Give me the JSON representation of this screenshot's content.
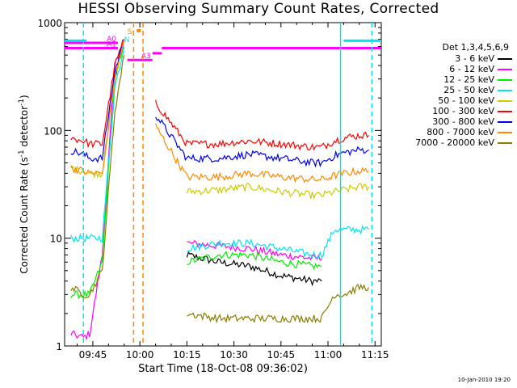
{
  "chart_data": {
    "type": "line",
    "title": "HESSI Observing Summary Count Rates, Corrected",
    "xlabel": "Start Time (18-Oct-08 09:36:02)",
    "ylabel": "Corrected Count Rate (s-1 detector-1)",
    "ylabel_parts": {
      "pre": "Corrected Count Rate (s",
      "sup1": "-1",
      "mid": " detector",
      "sup2": "-1",
      "post": ")"
    },
    "xlim": [
      "09:36",
      "11:17"
    ],
    "ylim": [
      1,
      1000
    ],
    "yscale": "log",
    "grid": false,
    "x_ticks": [
      "09:45",
      "10:00",
      "10:15",
      "10:30",
      "10:45",
      "11:00",
      "11:15"
    ],
    "y_ticks": [
      "1",
      "10",
      "100",
      "1000"
    ],
    "legend": {
      "title": "Det 1,3,4,5,6,9",
      "placement": "right",
      "entries": [
        {
          "label": "3 - 6 keV",
          "color": "#000000"
        },
        {
          "label": "6 - 12 keV",
          "color": "#ff00ff"
        },
        {
          "label": "12 - 25 keV",
          "color": "#00ee00"
        },
        {
          "label": "25 - 50 keV",
          "color": "#00e5ee"
        },
        {
          "label": "50 - 100 keV",
          "color": "#cccc00"
        },
        {
          "label": "100 - 300 keV",
          "color": "#ff0000"
        },
        {
          "label": "300 - 800 keV",
          "color": "#0000ee"
        },
        {
          "label": "800 - 7000 keV",
          "color": "#ff8800"
        },
        {
          "label": "7000 - 20000 keV",
          "color": "#8b7d00"
        }
      ]
    },
    "x": [
      "09:38",
      "09:42",
      "09:44",
      "09:48",
      "09:52",
      "09:55",
      "09:58",
      "10:00",
      "10:05",
      "10:15",
      "10:25",
      "10:35",
      "10:45",
      "10:55",
      "10:58",
      "11:02",
      "11:05",
      "11:10",
      "11:13"
    ],
    "series": [
      {
        "name": "3 - 6 keV",
        "color": "#000000",
        "values": [
          null,
          null,
          null,
          null,
          300,
          700,
          null,
          null,
          null,
          7,
          6,
          5.5,
          4.5,
          4,
          4,
          null,
          null,
          null,
          null
        ]
      },
      {
        "name": "6 - 12 keV",
        "color": "#ff00ff",
        "values": [
          1.3,
          1.2,
          1.3,
          7,
          400,
          700,
          null,
          null,
          null,
          9,
          8.5,
          8,
          7,
          6.5,
          6.5,
          null,
          null,
          null,
          null
        ]
      },
      {
        "name": "12 - 25 keV",
        "color": "#00ee00",
        "values": [
          3,
          3,
          3,
          6,
          300,
          600,
          null,
          null,
          null,
          6,
          7,
          7,
          6,
          5.5,
          5.5,
          null,
          null,
          null,
          null
        ]
      },
      {
        "name": "25 - 50 keV",
        "color": "#00e5ee",
        "values": [
          10,
          10,
          10,
          10,
          250,
          600,
          null,
          null,
          null,
          8,
          9,
          9,
          8,
          7,
          7,
          12,
          12,
          12,
          12
        ]
      },
      {
        "name": "50 - 100 keV",
        "color": "#cccc00",
        "values": [
          45,
          42,
          40,
          40,
          300,
          700,
          null,
          null,
          null,
          27,
          28,
          30,
          27,
          25,
          25,
          27,
          28,
          30,
          30
        ]
      },
      {
        "name": "100 - 300 keV",
        "color": "#ff0000",
        "values": [
          85,
          80,
          75,
          75,
          400,
          700,
          null,
          null,
          180,
          75,
          75,
          80,
          75,
          70,
          70,
          80,
          85,
          90,
          90
        ]
      },
      {
        "name": "300 - 800 keV",
        "color": "#0000ee",
        "values": [
          65,
          60,
          55,
          55,
          350,
          700,
          null,
          null,
          140,
          55,
          55,
          60,
          55,
          50,
          50,
          58,
          62,
          66,
          66
        ]
      },
      {
        "name": "800 - 7000 keV",
        "color": "#ff8800",
        "values": [
          45,
          42,
          40,
          40,
          300,
          700,
          null,
          null,
          110,
          37,
          37,
          40,
          37,
          35,
          35,
          38,
          40,
          42,
          42
        ]
      },
      {
        "name": "7000 - 20000 keV",
        "color": "#8b7d00",
        "values": [
          3.5,
          3,
          3,
          5,
          150,
          500,
          null,
          null,
          null,
          2,
          1.8,
          1.8,
          1.8,
          1.8,
          1.8,
          3,
          3,
          3.5,
          3.5
        ]
      }
    ],
    "attenuator_bars": [
      {
        "label": "A0",
        "color": "#ff00ff",
        "start": "09:36",
        "end": "09:53",
        "level": 650
      },
      {
        "label": "A1",
        "color": "#ff00ff",
        "start": "09:36",
        "end": "09:53",
        "level": 580
      },
      {
        "label": "A3",
        "color": "#ff00ff",
        "start": "09:56",
        "end": "10:04",
        "level": 450
      },
      {
        "label": "",
        "color": "#ff00ff",
        "start": "10:04",
        "end": "10:07",
        "level": 520
      },
      {
        "label": "",
        "color": "#ff00ff",
        "start": "10:07",
        "end": "11:17",
        "level": 580
      },
      {
        "label": "",
        "color": "#00e5ee",
        "start": "09:36",
        "end": "09:43",
        "level": 680
      },
      {
        "label": "",
        "color": "#00e5ee",
        "start": "11:05",
        "end": "11:17",
        "level": 680
      }
    ],
    "vertical_markers": [
      {
        "time": "09:42",
        "color": "#00e5ee",
        "style": "dashed"
      },
      {
        "time": "09:58",
        "color": "#ff8800",
        "style": "dashed"
      },
      {
        "time": "10:01",
        "color": "#ff8800",
        "style": "dashed"
      },
      {
        "time": "11:04",
        "color": "#00e5ee",
        "style": "solid"
      },
      {
        "time": "11:14",
        "color": "#00e5ee",
        "style": "dashed"
      }
    ],
    "flag_labels": [
      "S",
      "N",
      "A0",
      "A1",
      "A3"
    ]
  },
  "timestamp": "10-Jan-2010 19:20"
}
